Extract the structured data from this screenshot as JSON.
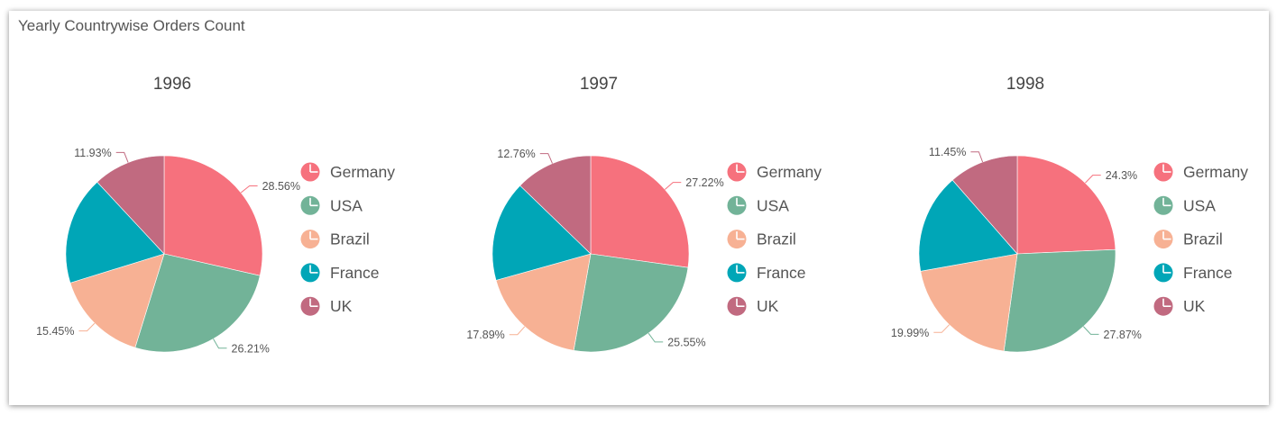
{
  "widget": {
    "title": "Yearly Countrywise Orders Count"
  },
  "colors": {
    "Germany": "#f6717d",
    "USA": "#72b398",
    "Brazil": "#f7b194",
    "France": "#00a6b7",
    "UK": "#c16a80"
  },
  "chart_data": [
    {
      "type": "pie",
      "title": "1996",
      "categories": [
        "Germany",
        "USA",
        "Brazil",
        "France",
        "UK"
      ],
      "values": [
        28.56,
        26.21,
        15.45,
        17.85,
        11.93
      ],
      "labels": [
        "28.56%",
        "26.21%",
        "15.45%",
        "",
        "11.93%"
      ],
      "legend_position": "right"
    },
    {
      "type": "pie",
      "title": "1997",
      "categories": [
        "Germany",
        "USA",
        "Brazil",
        "France",
        "UK"
      ],
      "values": [
        27.22,
        25.55,
        17.89,
        16.58,
        12.76
      ],
      "labels": [
        "27.22%",
        "25.55%",
        "17.89%",
        "",
        "12.76%"
      ],
      "legend_position": "right"
    },
    {
      "type": "pie",
      "title": "1998",
      "categories": [
        "Germany",
        "USA",
        "Brazil",
        "France",
        "UK"
      ],
      "values": [
        24.3,
        27.87,
        19.99,
        16.39,
        11.45
      ],
      "labels": [
        "24.3%",
        "27.87%",
        "19.99%",
        "",
        "11.45%"
      ],
      "legend_position": "right"
    }
  ]
}
